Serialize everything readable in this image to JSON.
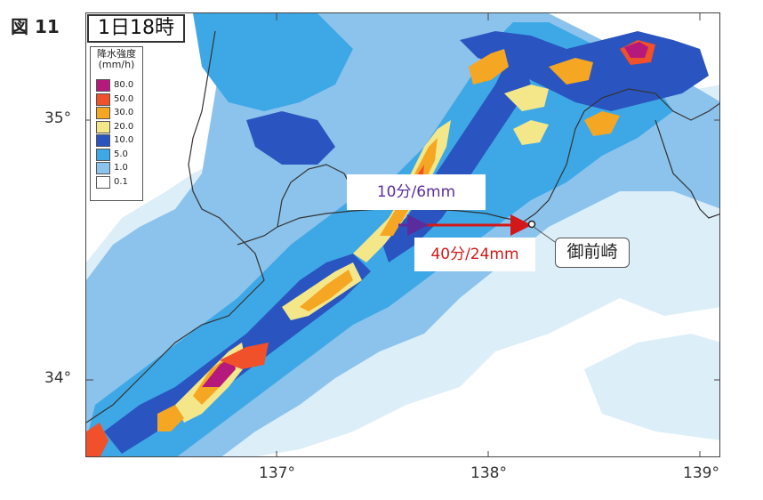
{
  "figure_label": "図 11",
  "time_label": "1日18時",
  "legend": {
    "title_line1": "降水強度",
    "title_line2": "(mm/h)",
    "items": [
      {
        "label": "80.0",
        "color": "#b5197b"
      },
      {
        "label": "50.0",
        "color": "#f0502a"
      },
      {
        "label": "30.0",
        "color": "#f5a623"
      },
      {
        "label": "20.0",
        "color": "#f4e78a"
      },
      {
        "label": "10.0",
        "color": "#2a55c0"
      },
      {
        "label": "5.0",
        "color": "#3ea8e6"
      },
      {
        "label": "1.0",
        "color": "#8cc3ec"
      },
      {
        "label": "0.1",
        "color": "#dceef8"
      }
    ]
  },
  "axes": {
    "lat_ticks": [
      "35°",
      "34°"
    ],
    "lon_ticks": [
      "137°",
      "138°",
      "139°"
    ]
  },
  "annotations": {
    "speed_10min": "10分/6mm",
    "speed_40min": "40分/24mm",
    "place": "御前崎"
  },
  "colors": {
    "light": "#dceef8",
    "mid": "#8cc3ec",
    "strong": "#3ea8e6",
    "dark": "#2a55c0",
    "yellow": "#f4e78a",
    "orange": "#f5a623",
    "red": "#f0502a",
    "magenta": "#b5197b",
    "coast": "#333333",
    "arrow_purple": "#5b2d9c",
    "arrow_red": "#d21818"
  }
}
